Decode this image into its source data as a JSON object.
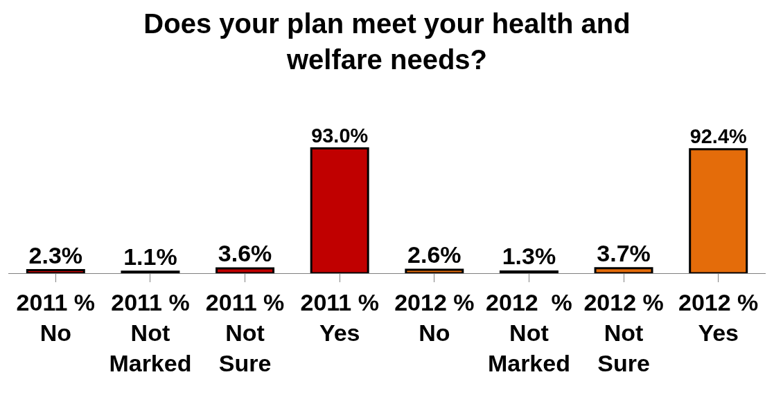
{
  "chart_data": {
    "type": "bar",
    "title": "Does your plan meet your health and\nwelfare needs?",
    "categories": [
      "2011 %\nNo",
      "2011 %\nNot\nMarked",
      "2011 %\nNot\nSure",
      "2011 %\nYes",
      "2012 %\nNo",
      "2012  %\nNot\nMarked",
      "2012 %\nNot\nSure",
      "2012 %\nYes"
    ],
    "values": [
      2.3,
      1.1,
      3.6,
      93.0,
      2.6,
      1.3,
      3.7,
      92.4
    ],
    "colors": [
      "#c00000",
      "#c00000",
      "#c00000",
      "#c00000",
      "#e46c0a",
      "#e46c0a",
      "#e46c0a",
      "#e46c0a"
    ],
    "value_labels": [
      "2.3%",
      "1.1%",
      "3.6%",
      "93.0%",
      "2.6%",
      "1.3%",
      "3.7%",
      "92.4%"
    ],
    "data_labels": false
  }
}
